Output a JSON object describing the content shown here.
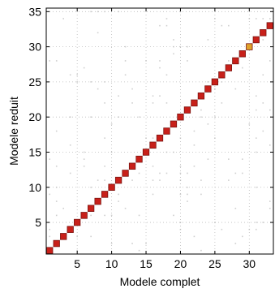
{
  "chart_data": {
    "type": "heatmap",
    "xlabel": "Modele complet",
    "ylabel": "Modele reduit",
    "xlim": [
      0.5,
      33.5
    ],
    "ylim": [
      0.5,
      35.5
    ],
    "x_ticks": [
      5,
      10,
      15,
      20,
      25,
      30
    ],
    "y_ticks": [
      5,
      10,
      15,
      20,
      25,
      30,
      35
    ],
    "grid": true,
    "colors": {
      "cell_high": "#c8201a",
      "cell_mid": "#e0a22a",
      "cell_border": "#7a1410",
      "background": "#ffffff",
      "noise": "#cfcfcf"
    },
    "cells": [
      {
        "x": 1,
        "y": 1,
        "value": 1.0
      },
      {
        "x": 2,
        "y": 2,
        "value": 1.0
      },
      {
        "x": 3,
        "y": 3,
        "value": 1.0
      },
      {
        "x": 4,
        "y": 4,
        "value": 1.0
      },
      {
        "x": 5,
        "y": 5,
        "value": 1.0
      },
      {
        "x": 6,
        "y": 6,
        "value": 1.0
      },
      {
        "x": 7,
        "y": 7,
        "value": 1.0
      },
      {
        "x": 8,
        "y": 8,
        "value": 1.0
      },
      {
        "x": 9,
        "y": 9,
        "value": 1.0
      },
      {
        "x": 10,
        "y": 10,
        "value": 1.0
      },
      {
        "x": 11,
        "y": 11,
        "value": 1.0
      },
      {
        "x": 12,
        "y": 12,
        "value": 1.0
      },
      {
        "x": 13,
        "y": 13,
        "value": 1.0
      },
      {
        "x": 14,
        "y": 14,
        "value": 1.0
      },
      {
        "x": 15,
        "y": 15,
        "value": 1.0
      },
      {
        "x": 16,
        "y": 16,
        "value": 1.0
      },
      {
        "x": 17,
        "y": 17,
        "value": 1.0
      },
      {
        "x": 18,
        "y": 18,
        "value": 1.0
      },
      {
        "x": 19,
        "y": 19,
        "value": 1.0
      },
      {
        "x": 20,
        "y": 20,
        "value": 1.0
      },
      {
        "x": 21,
        "y": 21,
        "value": 1.0
      },
      {
        "x": 22,
        "y": 22,
        "value": 1.0
      },
      {
        "x": 23,
        "y": 23,
        "value": 1.0
      },
      {
        "x": 24,
        "y": 24,
        "value": 1.0
      },
      {
        "x": 25,
        "y": 25,
        "value": 1.0
      },
      {
        "x": 26,
        "y": 26,
        "value": 1.0
      },
      {
        "x": 27,
        "y": 27,
        "value": 1.0
      },
      {
        "x": 28,
        "y": 28,
        "value": 1.0
      },
      {
        "x": 29,
        "y": 29,
        "value": 1.0
      },
      {
        "x": 30,
        "y": 30,
        "value": 0.6
      },
      {
        "x": 31,
        "y": 31,
        "value": 1.0
      },
      {
        "x": 32,
        "y": 32,
        "value": 1.0
      },
      {
        "x": 33,
        "y": 33,
        "value": 1.0
      }
    ]
  }
}
